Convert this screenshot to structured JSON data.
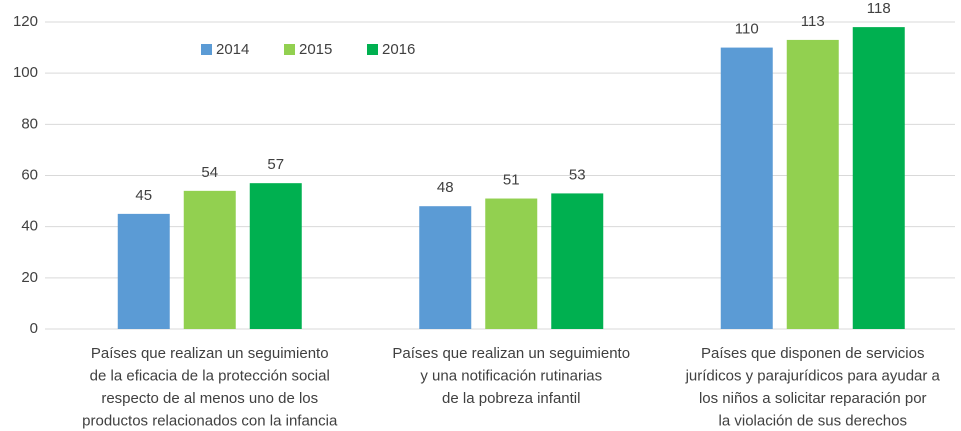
{
  "chart_data": {
    "type": "bar",
    "categories": [
      [
        "Países que realizan un seguimiento",
        "de la eficacia de la protección social",
        "respecto de al menos uno de los",
        "productos relacionados con la infancia"
      ],
      [
        "Países que realizan un seguimiento",
        "y una notificación rutinarias",
        "de la pobreza infantil"
      ],
      [
        "Países que disponen de servicios",
        "jurídicos y parajurídicos para ayudar a",
        "los niños a solicitar reparación por",
        "la violación de sus derechos"
      ]
    ],
    "series": [
      {
        "name": "2014",
        "color": "#5b9bd5",
        "values": [
          45,
          48,
          110
        ]
      },
      {
        "name": "2015",
        "color": "#92d050",
        "values": [
          54,
          51,
          113
        ]
      },
      {
        "name": "2016",
        "color": "#00b050",
        "values": [
          57,
          53,
          118
        ]
      }
    ],
    "ylim": [
      0,
      120
    ],
    "yticks": [
      0,
      20,
      40,
      60,
      80,
      100,
      120
    ],
    "grid": true,
    "legend": "top"
  }
}
